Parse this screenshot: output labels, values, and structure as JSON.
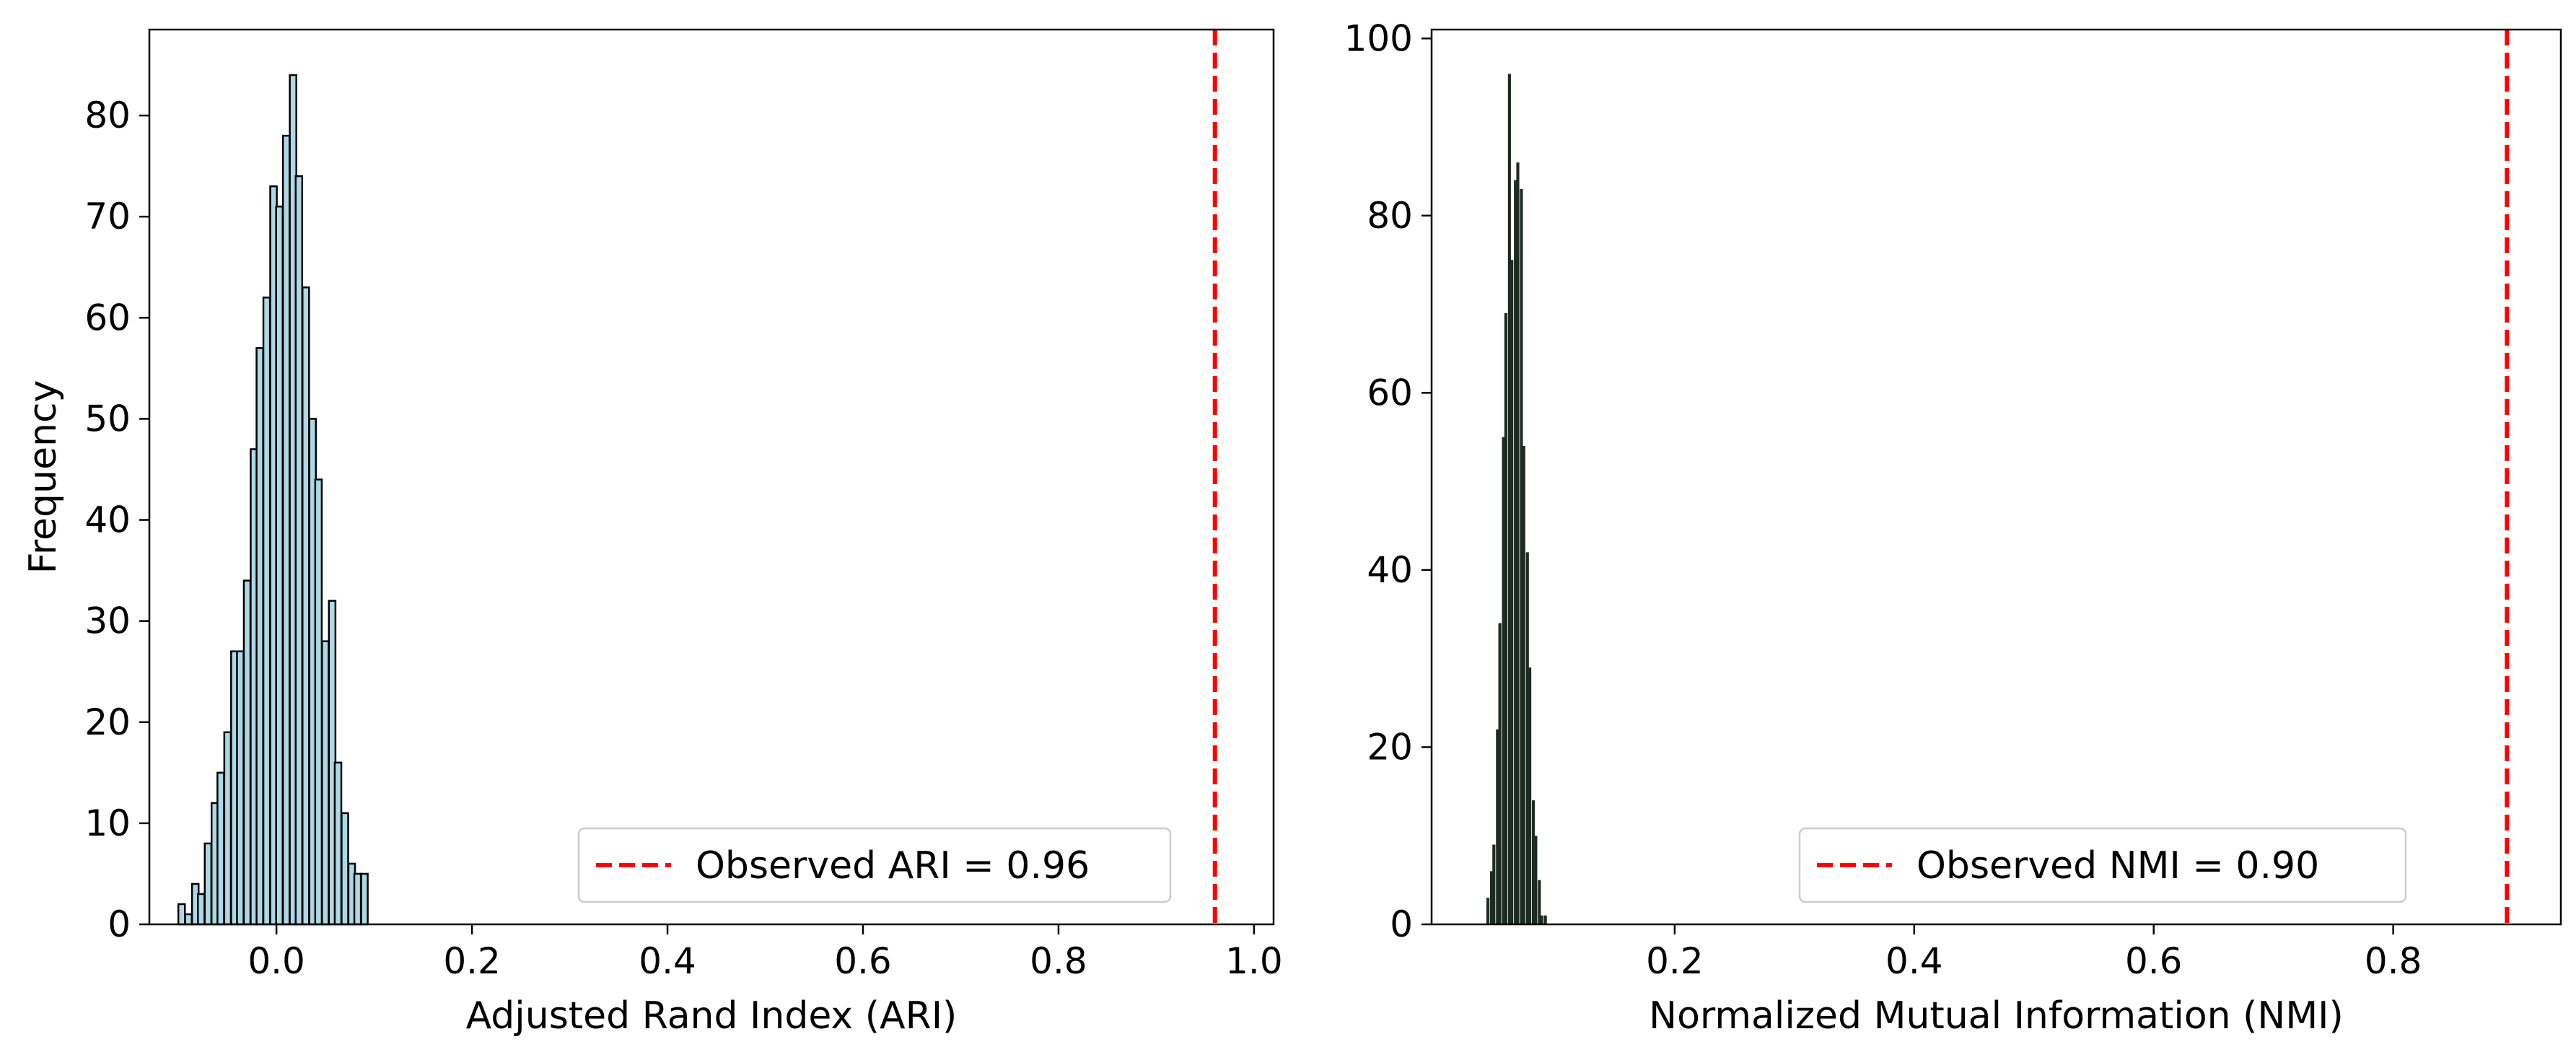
{
  "chart_data": [
    {
      "type": "bar",
      "subtype": "histogram",
      "xlabel": "Adjusted Rand Index (ARI)",
      "ylabel": "Frequency",
      "xlim": [
        -0.13,
        1.02
      ],
      "ylim": [
        0,
        88.5
      ],
      "xticks": [
        0.0,
        0.2,
        0.4,
        0.6,
        0.8,
        1.0
      ],
      "xtick_labels": [
        "0.0",
        "0.2",
        "0.4",
        "0.6",
        "0.8",
        "1.0"
      ],
      "yticks": [
        0,
        10,
        20,
        30,
        40,
        50,
        60,
        70,
        80
      ],
      "ytick_labels": [
        "0",
        "10",
        "20",
        "30",
        "40",
        "50",
        "60",
        "70",
        "80"
      ],
      "bar_color": "#add8e6",
      "bar_edge_color": "#000000",
      "bin_width": 0.0067,
      "x": [
        -0.097,
        -0.09,
        -0.083,
        -0.077,
        -0.07,
        -0.063,
        -0.057,
        -0.05,
        -0.043,
        -0.037,
        -0.03,
        -0.023,
        -0.017,
        -0.01,
        -0.003,
        0.003,
        0.01,
        0.017,
        0.023,
        0.03,
        0.037,
        0.043,
        0.05,
        0.057,
        0.063,
        0.07,
        0.077,
        0.083,
        0.09
      ],
      "values": [
        2,
        1,
        4,
        3,
        8,
        12,
        15,
        19,
        27,
        27,
        34,
        47,
        57,
        62,
        73,
        71,
        78,
        84,
        74,
        63,
        50,
        44,
        28,
        32,
        16,
        11,
        6,
        5,
        5
      ],
      "reference_line": {
        "x": 0.96,
        "color": "#ff0000",
        "style": "dashed",
        "label": "Observed ARI = 0.96"
      },
      "legend": {
        "placement": "lower-center",
        "entries": [
          "Observed ARI = 0.96"
        ]
      },
      "grid": false
    },
    {
      "type": "bar",
      "subtype": "histogram",
      "xlabel": "Normalized Mutual Information (NMI)",
      "ylabel": "",
      "xlim": [
        -0.003,
        0.94
      ],
      "ylim": [
        0,
        101
      ],
      "xticks": [
        0.2,
        0.4,
        0.6,
        0.8
      ],
      "xtick_labels": [
        "0.2",
        "0.4",
        "0.6",
        "0.8"
      ],
      "yticks": [
        0,
        20,
        40,
        60,
        80,
        100
      ],
      "ytick_labels": [
        "0",
        "20",
        "40",
        "60",
        "80",
        "100"
      ],
      "bar_color": "#1e2b22",
      "bin_width": 0.0025,
      "x": [
        0.044,
        0.047,
        0.049,
        0.052,
        0.054,
        0.057,
        0.059,
        0.062,
        0.064,
        0.067,
        0.069,
        0.072,
        0.074,
        0.077,
        0.079,
        0.082,
        0.084,
        0.087,
        0.089,
        0.092
      ],
      "values": [
        3,
        6,
        9,
        22,
        34,
        55,
        69,
        96,
        75,
        84,
        86,
        83,
        54,
        42,
        29,
        14,
        10,
        5,
        1,
        1
      ],
      "reference_line": {
        "x": 0.895,
        "color": "#ff0000",
        "style": "dashed",
        "label": "Observed NMI = 0.90"
      },
      "legend": {
        "placement": "lower-center",
        "entries": [
          "Observed NMI = 0.90"
        ]
      },
      "grid": false
    }
  ]
}
